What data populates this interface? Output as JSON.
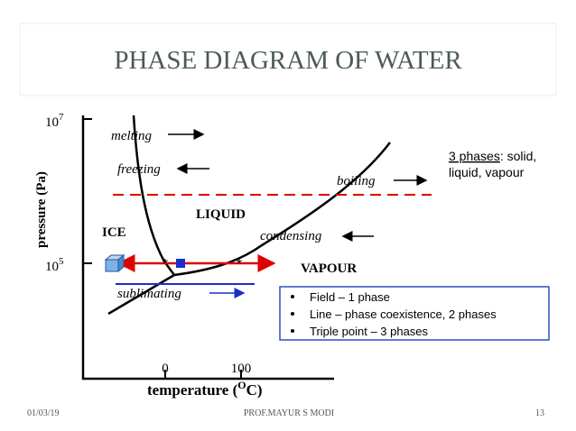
{
  "header": {
    "title": "PHASE DIAGRAM OF WATER"
  },
  "diagram": {
    "y_axis_label": "pressure (Pa)",
    "x_axis_label": {
      "before": "temperature (",
      "superscript": "O",
      "after": "C)"
    },
    "y_ticks": [
      {
        "base": "10",
        "exponent": "7"
      },
      {
        "base": "10",
        "exponent": "5"
      }
    ],
    "x_ticks": [
      "0",
      "100"
    ],
    "regions": {
      "ice": "ICE",
      "liquid": "LIQUID",
      "vapour": "VAPOUR"
    },
    "processes": {
      "melting": "melting",
      "freezing": "freezing",
      "boiling": "boiling",
      "condensing": "condensing",
      "sublimating": "sublimating"
    },
    "note": {
      "underlined": "3 phases",
      "rest": ": solid,",
      "line2": "liquid, vapour"
    },
    "legend": [
      "Field – 1 phase",
      "Line – phase coexistence, 2 phases",
      "Triple point – 3 phases"
    ]
  },
  "footer": {
    "date": "01/03/19",
    "author": "PROF.MAYUR S MODI",
    "page": "13"
  }
}
